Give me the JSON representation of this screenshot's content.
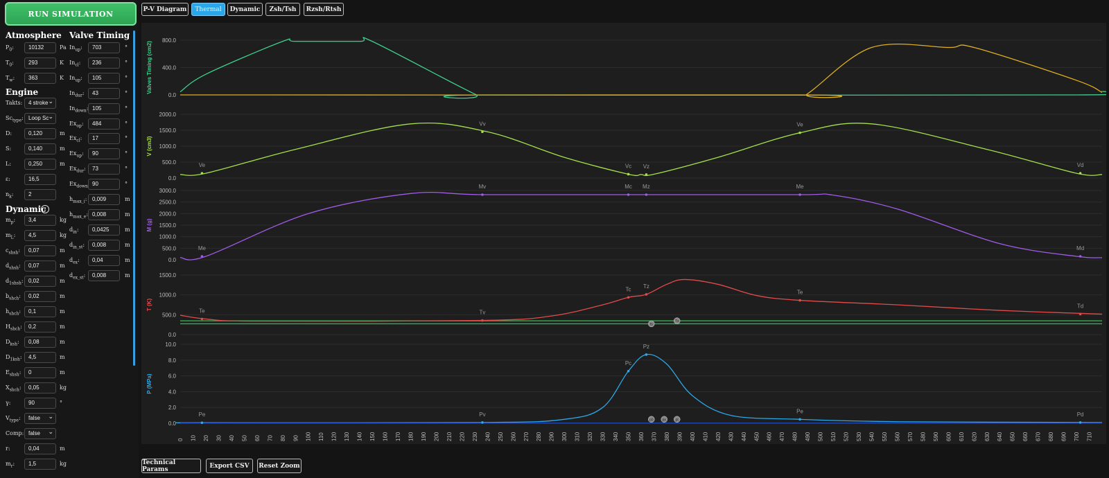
{
  "run_label": "RUN SIMULATION",
  "tabs": [
    {
      "label": "P-V Diagram",
      "active": false
    },
    {
      "label": "Thermal",
      "active": true
    },
    {
      "label": "Dynamic",
      "active": false
    },
    {
      "label": "Zsh/Tsh",
      "active": false
    },
    {
      "label": "Rzsh/Rtsh",
      "active": false
    }
  ],
  "bottom_buttons": [
    "Technical Params",
    "Export CSV",
    "Reset Zoom"
  ],
  "sections": {
    "atmosphere": "Atmosphere",
    "engine": "Engine",
    "dynamic": "Dynamic",
    "valve": "Valve Timing"
  },
  "info_icon": "i",
  "params_col1": [
    {
      "b": "P",
      "s": "0",
      "value": "10132",
      "unit": "Pa"
    },
    {
      "b": "T",
      "s": "0",
      "value": "293",
      "unit": "K"
    },
    {
      "b": "T",
      "s": "w",
      "value": "363",
      "unit": "K"
    },
    {
      "b": "Takts",
      "s": "",
      "value": "4 stroke",
      "unit": "",
      "select": true
    },
    {
      "b": "Sc",
      "s": "type",
      "value": "Loop Sc",
      "unit": "",
      "select": true
    },
    {
      "b": "D",
      "s": "",
      "value": "0,120",
      "unit": "m"
    },
    {
      "b": "S",
      "s": "",
      "value": "0,140",
      "unit": "m"
    },
    {
      "b": "L",
      "s": "",
      "value": "0,250",
      "unit": "m"
    },
    {
      "b": "ε",
      "s": "",
      "value": "16,5",
      "unit": ""
    },
    {
      "b": "n",
      "s": "k",
      "value": "2",
      "unit": ""
    },
    {
      "b": "m",
      "s": "p",
      "value": "3,4",
      "unit": "kg"
    },
    {
      "b": "m",
      "s": "L",
      "value": "4,5",
      "unit": "kg"
    },
    {
      "b": "c",
      "s": "shsh",
      "value": "0,07",
      "unit": "m"
    },
    {
      "b": "d",
      "s": "shsh",
      "value": "0,07",
      "unit": "m"
    },
    {
      "b": "d",
      "s": "1shsh",
      "value": "0,02",
      "unit": "m"
    },
    {
      "b": "b",
      "s": "shch",
      "value": "0,02",
      "unit": "m"
    },
    {
      "b": "h",
      "s": "shch",
      "value": "0,1",
      "unit": "m"
    },
    {
      "b": "H",
      "s": "shch",
      "value": "0,2",
      "unit": "m"
    },
    {
      "b": "D",
      "s": "ksh",
      "value": "0,08",
      "unit": "m"
    },
    {
      "b": "D",
      "s": "1ksh",
      "value": "4,5",
      "unit": "m"
    },
    {
      "b": "E",
      "s": "shsh",
      "value": "0",
      "unit": "m"
    },
    {
      "b": "X",
      "s": "shch",
      "value": "0,05",
      "unit": "kg"
    },
    {
      "b": "γ",
      "s": "",
      "value": "90",
      "unit": "°"
    },
    {
      "b": "V",
      "s": "type",
      "value": "false",
      "unit": "",
      "select": true
    },
    {
      "b": "Comp",
      "s": "",
      "value": "false",
      "unit": "",
      "select": true
    },
    {
      "b": "r",
      "s": "",
      "value": "0,04",
      "unit": "m"
    },
    {
      "b": "m",
      "s": "r",
      "value": "1,5",
      "unit": "kg"
    }
  ],
  "params_col2": [
    {
      "b": "In",
      "s": "up",
      "value": "703",
      "unit": "°"
    },
    {
      "b": "In",
      "s": "cl",
      "value": "236",
      "unit": "°"
    },
    {
      "b": "In",
      "s": "up",
      "value": "105",
      "unit": "°"
    },
    {
      "b": "In",
      "s": "dur",
      "value": "43",
      "unit": "°"
    },
    {
      "b": "In",
      "s": "down",
      "value": "105",
      "unit": "°"
    },
    {
      "b": "Ex",
      "s": "op",
      "value": "484",
      "unit": "°"
    },
    {
      "b": "Ex",
      "s": "cl",
      "value": "17",
      "unit": "°"
    },
    {
      "b": "Ex",
      "s": "up",
      "value": "90",
      "unit": "°"
    },
    {
      "b": "Ex",
      "s": "dur",
      "value": "73",
      "unit": "°"
    },
    {
      "b": "Ex",
      "s": "down",
      "value": "90",
      "unit": "°"
    },
    {
      "b": "h",
      "s": "max_i",
      "value": "0,009",
      "unit": "m"
    },
    {
      "b": "h",
      "s": "max_e",
      "value": "0,008",
      "unit": "m"
    },
    {
      "b": "d",
      "s": "in",
      "value": "0,0425",
      "unit": "m"
    },
    {
      "b": "d",
      "s": "in_st",
      "value": "0,008",
      "unit": "m"
    },
    {
      "b": "d",
      "s": "ex",
      "value": "0,04",
      "unit": "m"
    },
    {
      "b": "d",
      "s": "ex_st",
      "value": "0,008",
      "unit": "m"
    }
  ],
  "chart_data": [
    {
      "type": "line",
      "ylabel": "Valves Timing (cm2)",
      "ylim": [
        0,
        900
      ],
      "yticks": [
        "0.0",
        "400.0",
        "800.0"
      ],
      "series": [
        {
          "color": "#3ecf8e",
          "x": [
            0,
            20,
            80,
            90,
            140,
            150,
            230,
            240,
            700,
            720
          ],
          "y": [
            50,
            340,
            880,
            880,
            880,
            880,
            15,
            0,
            0,
            60
          ]
        },
        {
          "color": "#e0b020",
          "x": [
            0,
            480,
            490,
            540,
            600,
            620,
            700,
            720
          ],
          "y": [
            0,
            0,
            20,
            780,
            780,
            780,
            240,
            40
          ]
        }
      ],
      "markers": []
    },
    {
      "type": "line",
      "ylabel": "V (cm3)",
      "ylim": [
        0,
        2000
      ],
      "yticks": [
        "0.0",
        "500.0",
        "1000.0",
        "1500.0",
        "2000.0"
      ],
      "series": [
        {
          "color": "#a4e04a",
          "x": [
            0,
            20,
            90,
            180,
            240,
            300,
            350,
            360,
            370,
            420,
            484,
            540,
            630,
            700,
            720
          ],
          "y": [
            110,
            150,
            900,
            1700,
            1450,
            650,
            120,
            110,
            120,
            650,
            1420,
            1700,
            900,
            150,
            110
          ]
        }
      ],
      "markers": [
        {
          "label": "Ve",
          "x": 17,
          "y": 150
        },
        {
          "label": "Vv",
          "x": 236,
          "y": 1450
        },
        {
          "label": "Vc",
          "x": 350,
          "y": 120
        },
        {
          "label": "Vz",
          "x": 364,
          "y": 110
        },
        {
          "label": "Ve",
          "x": 484,
          "y": 1420
        },
        {
          "label": "Vd",
          "x": 703,
          "y": 150
        }
      ]
    },
    {
      "type": "line",
      "ylabel": "M (g)",
      "ylim": [
        0,
        3000
      ],
      "yticks": [
        "0.0",
        "500.0",
        "1000.0",
        "1500.0",
        "2000.0",
        "2500.0",
        "3000.0"
      ],
      "series": [
        {
          "color": "#a15ce8",
          "x": [
            0,
            20,
            100,
            180,
            236,
            350,
            484,
            510,
            560,
            640,
            700,
            720
          ],
          "y": [
            100,
            150,
            2000,
            2870,
            2820,
            2820,
            2820,
            2800,
            2200,
            700,
            150,
            90
          ]
        }
      ],
      "markers": [
        {
          "label": "Me",
          "x": 17,
          "y": 150
        },
        {
          "label": "Mv",
          "x": 236,
          "y": 2820
        },
        {
          "label": "Mc",
          "x": 350,
          "y": 2820
        },
        {
          "label": "Mz",
          "x": 364,
          "y": 2820
        },
        {
          "label": "Me",
          "x": 484,
          "y": 2820
        },
        {
          "label": "Md",
          "x": 703,
          "y": 150
        }
      ]
    },
    {
      "type": "line",
      "ylabel": "T (K)",
      "ylim": [
        0,
        1600
      ],
      "yticks": [
        "0.0",
        "500.0",
        "1000.0",
        "1500.0"
      ],
      "series": [
        {
          "color": "#e24b4b",
          "x": [
            0,
            20,
            60,
            236,
            290,
            330,
            350,
            364,
            380,
            394,
            420,
            450,
            484,
            560,
            640,
            720
          ],
          "y": [
            520,
            420,
            360,
            380,
            500,
            800,
            1000,
            1080,
            1350,
            1480,
            1350,
            1050,
            920,
            800,
            650,
            550
          ]
        }
      ],
      "markers": [
        {
          "label": "Te",
          "x": 17,
          "y": 420
        },
        {
          "label": "Tv",
          "x": 236,
          "y": 380
        },
        {
          "label": "Tc",
          "x": 350,
          "y": 1000
        },
        {
          "label": "Tz",
          "x": 364,
          "y": 1080
        },
        {
          "label": "Te",
          "x": 484,
          "y": 920
        },
        {
          "label": "Td",
          "x": 703,
          "y": 550
        }
      ],
      "hlines": [
        {
          "color": "#2ea84a",
          "y": 370
        },
        {
          "color": "#2ea84a",
          "y": 290
        }
      ],
      "badges": [
        {
          "label": "ts",
          "x": 368,
          "y": 290
        },
        {
          "label": "Tx",
          "x": 388,
          "y": 370
        }
      ]
    },
    {
      "type": "line",
      "ylabel": "P (MPa)",
      "ylim": [
        0,
        10
      ],
      "yticks": [
        "0.0",
        "2.0",
        "4.0",
        "6.0",
        "8.0",
        "10.0"
      ],
      "series": [
        {
          "color": "#2aa8e8",
          "x": [
            0,
            20,
            236,
            300,
            330,
            350,
            364,
            380,
            400,
            430,
            484,
            560,
            720
          ],
          "y": [
            0.05,
            0.07,
            0.1,
            0.5,
            2.0,
            6.6,
            8.7,
            7.5,
            3.5,
            1.0,
            0.5,
            0.2,
            0.1
          ]
        },
        {
          "color": "#1e48c8",
          "x": [
            0,
            720
          ],
          "y": [
            0.02,
            0.02
          ]
        }
      ],
      "markers": [
        {
          "label": "Pe",
          "x": 17,
          "y": 0.07
        },
        {
          "label": "Pv",
          "x": 236,
          "y": 0.1
        },
        {
          "label": "Pc",
          "x": 350,
          "y": 6.6
        },
        {
          "label": "Pz",
          "x": 364,
          "y": 8.7
        },
        {
          "label": "Pe",
          "x": 484,
          "y": 0.5
        },
        {
          "label": "Pd",
          "x": 703,
          "y": 0.1
        }
      ],
      "badges": [
        {
          "label": "p0",
          "x": 368,
          "y": 0.5
        },
        {
          "label": "px",
          "x": 378,
          "y": 0.5
        },
        {
          "label": "pt",
          "x": 388,
          "y": 0.5
        }
      ]
    }
  ],
  "xaxis": {
    "min": 0,
    "max": 720,
    "step": 10
  }
}
